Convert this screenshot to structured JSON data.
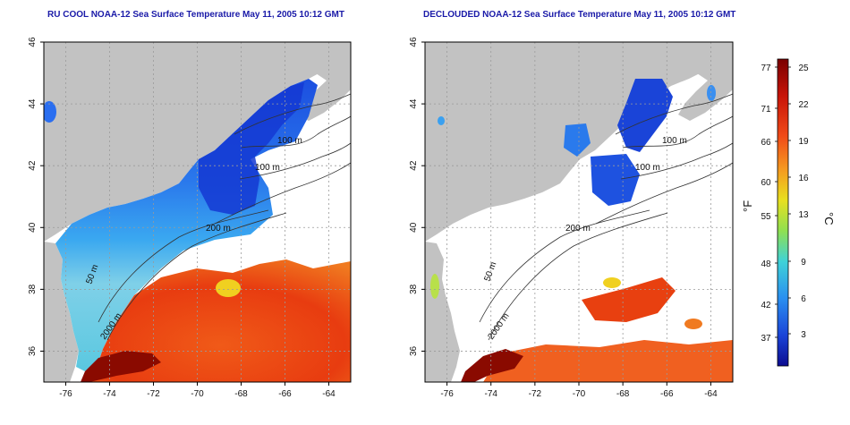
{
  "panels": [
    {
      "title": "RU COOL NOAA-12 Sea Surface Temperature May 11, 2005 10:12 GMT",
      "contour_labels": [
        "100 m",
        "100 m",
        "200 m",
        "50 m",
        "2000 m"
      ]
    },
    {
      "title": "DECLOUDED NOAA-12 Sea Surface Temperature May 11, 2005 10:12 GMT",
      "contour_labels": [
        "100 m",
        "100 m",
        "200 m",
        "50 m",
        "2000 m"
      ]
    }
  ],
  "map_axes": {
    "lon_ticks": [
      "-76",
      "-74",
      "-72",
      "-70",
      "-68",
      "-66",
      "-64"
    ],
    "lat_ticks": [
      "36",
      "38",
      "40",
      "42",
      "44",
      "46"
    ],
    "lon_range": [
      -77,
      -63
    ],
    "lat_range": [
      35,
      46
    ],
    "grid": "dotted"
  },
  "colorbar": {
    "f_label": "°F",
    "c_label": "°C",
    "f_ticks": [
      "77",
      "71",
      "66",
      "60",
      "55",
      "48",
      "42",
      "37"
    ],
    "c_ticks": [
      "25",
      "22",
      "19",
      "16",
      "13",
      "9",
      "6",
      "3"
    ],
    "colors": [
      "#7a0000",
      "#d11a0a",
      "#f0501a",
      "#f5a020",
      "#e8e020",
      "#9be04a",
      "#3fd2d8",
      "#2a9ff0",
      "#1a55e0",
      "#1010a0"
    ]
  },
  "legend_colors": {
    "land": "#c2c2c2",
    "water_nodata": "#ffffff",
    "contour": "#333333"
  }
}
